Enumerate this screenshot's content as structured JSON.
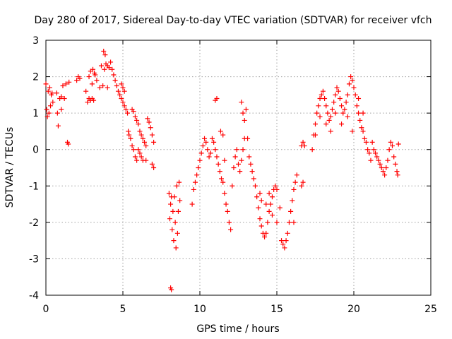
{
  "chart_data": {
    "type": "scatter",
    "title": "Day 280 of 2017, Sidereal Day-to-day VTEC variation (SDTVAR) for receiver vfch",
    "xlabel": "GPS time / hours",
    "ylabel": "SDTVAR / TECUs",
    "xlim": [
      0,
      25
    ],
    "ylim": [
      -4,
      3
    ],
    "xticks": [
      0,
      5,
      10,
      15,
      20,
      25
    ],
    "yticks": [
      -4,
      -3,
      -2,
      -1,
      0,
      1,
      2,
      3
    ],
    "grid": true,
    "marker": "+",
    "color": "#ff0000",
    "series": [
      {
        "name": "SDTVAR",
        "points": [
          [
            0.0,
            1.8
          ],
          [
            0.05,
            1.1
          ],
          [
            0.1,
            0.9
          ],
          [
            0.15,
            1.6
          ],
          [
            0.2,
            1.0
          ],
          [
            0.25,
            1.7
          ],
          [
            0.3,
            1.2
          ],
          [
            0.35,
            1.5
          ],
          [
            0.4,
            1.55
          ],
          [
            0.45,
            1.3
          ],
          [
            0.7,
            1.55
          ],
          [
            0.75,
            1.0
          ],
          [
            0.8,
            0.65
          ],
          [
            0.9,
            1.4
          ],
          [
            1.0,
            1.1
          ],
          [
            1.0,
            1.45
          ],
          [
            1.1,
            1.75
          ],
          [
            1.2,
            1.4
          ],
          [
            1.3,
            1.8
          ],
          [
            1.4,
            0.2
          ],
          [
            1.45,
            0.15
          ],
          [
            1.5,
            1.85
          ],
          [
            2.0,
            1.9
          ],
          [
            2.1,
            2.0
          ],
          [
            2.2,
            1.95
          ],
          [
            2.6,
            1.6
          ],
          [
            2.7,
            1.3
          ],
          [
            2.8,
            1.4
          ],
          [
            2.8,
            2.0
          ],
          [
            2.9,
            1.35
          ],
          [
            2.9,
            2.15
          ],
          [
            3.0,
            1.4
          ],
          [
            3.0,
            1.8
          ],
          [
            3.05,
            2.2
          ],
          [
            3.1,
            1.35
          ],
          [
            3.15,
            2.1
          ],
          [
            3.2,
            2.05
          ],
          [
            3.3,
            1.9
          ],
          [
            3.5,
            1.7
          ],
          [
            3.6,
            2.3
          ],
          [
            3.7,
            1.75
          ],
          [
            3.75,
            2.7
          ],
          [
            3.8,
            2.2
          ],
          [
            3.85,
            2.6
          ],
          [
            3.9,
            2.35
          ],
          [
            4.0,
            1.7
          ],
          [
            4.0,
            2.3
          ],
          [
            4.1,
            2.25
          ],
          [
            4.2,
            2.4
          ],
          [
            4.3,
            2.2
          ],
          [
            4.4,
            2.05
          ],
          [
            4.5,
            1.9
          ],
          [
            4.6,
            1.75
          ],
          [
            4.7,
            1.6
          ],
          [
            4.8,
            1.5
          ],
          [
            4.9,
            1.4
          ],
          [
            5.0,
            1.3
          ],
          [
            5.1,
            1.2
          ],
          [
            5.2,
            1.1
          ],
          [
            5.3,
            1.0
          ],
          [
            4.9,
            1.8
          ],
          [
            5.0,
            1.7
          ],
          [
            5.1,
            1.6
          ],
          [
            5.35,
            0.5
          ],
          [
            5.4,
            0.4
          ],
          [
            5.5,
            0.3
          ],
          [
            5.6,
            0.1
          ],
          [
            5.7,
            0.0
          ],
          [
            5.8,
            -0.2
          ],
          [
            5.9,
            -0.3
          ],
          [
            5.6,
            1.1
          ],
          [
            5.7,
            1.05
          ],
          [
            5.8,
            0.9
          ],
          [
            5.9,
            0.8
          ],
          [
            6.0,
            0.7
          ],
          [
            6.1,
            0.5
          ],
          [
            6.2,
            0.4
          ],
          [
            6.3,
            0.3
          ],
          [
            6.4,
            0.2
          ],
          [
            6.5,
            0.1
          ],
          [
            6.0,
            0.0
          ],
          [
            6.1,
            -0.1
          ],
          [
            6.2,
            -0.2
          ],
          [
            6.3,
            -0.3
          ],
          [
            6.5,
            -0.3
          ],
          [
            6.6,
            0.85
          ],
          [
            6.7,
            0.75
          ],
          [
            6.8,
            0.6
          ],
          [
            6.9,
            0.4
          ],
          [
            6.9,
            -0.4
          ],
          [
            7.0,
            -0.5
          ],
          [
            7.0,
            0.2
          ],
          [
            8.0,
            -1.2
          ],
          [
            8.05,
            -1.9
          ],
          [
            8.1,
            -1.5
          ],
          [
            8.1,
            -3.8
          ],
          [
            8.15,
            -1.3
          ],
          [
            8.15,
            -3.85
          ],
          [
            8.2,
            -2.2
          ],
          [
            8.25,
            -1.7
          ],
          [
            8.3,
            -2.5
          ],
          [
            8.35,
            -1.3
          ],
          [
            8.4,
            -2.0
          ],
          [
            8.45,
            -2.7
          ],
          [
            8.5,
            -1.0
          ],
          [
            8.55,
            -2.3
          ],
          [
            8.6,
            -1.7
          ],
          [
            8.65,
            -0.9
          ],
          [
            8.7,
            -1.4
          ],
          [
            9.5,
            -1.5
          ],
          [
            9.6,
            -1.1
          ],
          [
            9.7,
            -0.9
          ],
          [
            9.8,
            -0.7
          ],
          [
            9.9,
            -0.5
          ],
          [
            10.0,
            -0.3
          ],
          [
            10.1,
            -0.1
          ],
          [
            10.2,
            0.1
          ],
          [
            10.3,
            0.3
          ],
          [
            10.4,
            0.2
          ],
          [
            10.5,
            0.0
          ],
          [
            10.6,
            -0.2
          ],
          [
            10.7,
            -0.1
          ],
          [
            10.8,
            0.3
          ],
          [
            10.9,
            0.2
          ],
          [
            11.0,
            1.35
          ],
          [
            11.1,
            1.4
          ],
          [
            11.0,
            0.0
          ],
          [
            11.1,
            -0.2
          ],
          [
            11.2,
            -0.4
          ],
          [
            11.3,
            -0.6
          ],
          [
            11.35,
            0.5
          ],
          [
            11.4,
            -0.8
          ],
          [
            11.5,
            -0.9
          ],
          [
            11.6,
            -1.2
          ],
          [
            11.7,
            -1.5
          ],
          [
            11.8,
            -1.7
          ],
          [
            11.9,
            -2.0
          ],
          [
            12.0,
            -2.2
          ],
          [
            12.1,
            -1.0
          ],
          [
            12.2,
            -0.5
          ],
          [
            12.3,
            -0.2
          ],
          [
            12.4,
            0.0
          ],
          [
            11.5,
            0.4
          ],
          [
            11.6,
            -0.3
          ],
          [
            12.5,
            -0.4
          ],
          [
            12.6,
            -0.6
          ],
          [
            12.7,
            -0.3
          ],
          [
            12.8,
            0.0
          ],
          [
            12.9,
            0.3
          ],
          [
            12.7,
            1.3
          ],
          [
            12.8,
            1.0
          ],
          [
            12.9,
            0.8
          ],
          [
            13.0,
            1.1
          ],
          [
            13.1,
            0.3
          ],
          [
            13.2,
            -0.2
          ],
          [
            13.3,
            -0.4
          ],
          [
            13.4,
            -0.6
          ],
          [
            13.5,
            -0.8
          ],
          [
            13.6,
            -1.0
          ],
          [
            13.7,
            -1.3
          ],
          [
            13.8,
            -1.6
          ],
          [
            13.9,
            -1.9
          ],
          [
            14.0,
            -2.1
          ],
          [
            14.1,
            -2.3
          ],
          [
            14.2,
            -2.4
          ],
          [
            14.3,
            -2.3
          ],
          [
            14.4,
            -2.0
          ],
          [
            14.5,
            -1.7
          ],
          [
            14.6,
            -1.5
          ],
          [
            14.7,
            -1.3
          ],
          [
            14.8,
            -1.1
          ],
          [
            14.9,
            -1.0
          ],
          [
            15.0,
            -1.1
          ],
          [
            13.9,
            -1.2
          ],
          [
            14.0,
            -1.4
          ],
          [
            14.3,
            -1.5
          ],
          [
            14.5,
            -1.2
          ],
          [
            14.7,
            -1.8
          ],
          [
            15.0,
            -2.0
          ],
          [
            15.2,
            -1.6
          ],
          [
            15.3,
            -2.5
          ],
          [
            15.4,
            -2.6
          ],
          [
            15.5,
            -2.7
          ],
          [
            15.6,
            -2.5
          ],
          [
            15.7,
            -2.3
          ],
          [
            15.8,
            -2.0
          ],
          [
            15.9,
            -1.7
          ],
          [
            16.0,
            -1.4
          ],
          [
            16.1,
            -1.1
          ],
          [
            16.2,
            -0.9
          ],
          [
            16.3,
            -0.7
          ],
          [
            16.1,
            -2.0
          ],
          [
            16.6,
            -1.0
          ],
          [
            16.7,
            -0.9
          ],
          [
            16.6,
            0.1
          ],
          [
            16.7,
            0.2
          ],
          [
            16.8,
            0.1
          ],
          [
            17.3,
            0.0
          ],
          [
            17.4,
            0.4
          ],
          [
            17.5,
            0.7
          ],
          [
            17.6,
            1.0
          ],
          [
            17.7,
            1.2
          ],
          [
            17.8,
            1.4
          ],
          [
            17.9,
            1.5
          ],
          [
            18.0,
            1.6
          ],
          [
            18.1,
            1.4
          ],
          [
            18.2,
            1.2
          ],
          [
            18.3,
            1.0
          ],
          [
            18.4,
            0.8
          ],
          [
            18.5,
            0.9
          ],
          [
            18.6,
            1.1
          ],
          [
            18.7,
            1.3
          ],
          [
            18.8,
            1.5
          ],
          [
            18.9,
            1.7
          ],
          [
            19.0,
            1.6
          ],
          [
            19.1,
            1.4
          ],
          [
            19.2,
            1.2
          ],
          [
            19.3,
            1.0
          ],
          [
            19.4,
            1.1
          ],
          [
            19.5,
            1.3
          ],
          [
            19.6,
            1.5
          ],
          [
            19.7,
            1.8
          ],
          [
            19.8,
            2.0
          ],
          [
            19.9,
            1.9
          ],
          [
            20.0,
            1.7
          ],
          [
            20.1,
            1.5
          ],
          [
            20.2,
            1.2
          ],
          [
            20.3,
            1.0
          ],
          [
            20.4,
            0.8
          ],
          [
            20.5,
            0.6
          ],
          [
            20.6,
            0.5
          ],
          [
            20.7,
            0.3
          ],
          [
            20.8,
            0.2
          ],
          [
            20.9,
            0.0
          ],
          [
            21.0,
            -0.1
          ],
          [
            21.1,
            -0.3
          ],
          [
            17.5,
            0.4
          ],
          [
            17.8,
            0.9
          ],
          [
            18.2,
            0.7
          ],
          [
            18.5,
            0.5
          ],
          [
            18.8,
            1.0
          ],
          [
            19.2,
            0.7
          ],
          [
            19.6,
            0.9
          ],
          [
            19.9,
            0.5
          ],
          [
            20.3,
            1.4
          ],
          [
            20.6,
            1.0
          ],
          [
            21.2,
            0.2
          ],
          [
            21.3,
            0.0
          ],
          [
            21.4,
            -0.1
          ],
          [
            21.5,
            -0.2
          ],
          [
            21.6,
            -0.3
          ],
          [
            21.7,
            -0.4
          ],
          [
            21.8,
            -0.5
          ],
          [
            21.9,
            -0.6
          ],
          [
            22.0,
            -0.7
          ],
          [
            22.1,
            -0.5
          ],
          [
            22.2,
            -0.3
          ],
          [
            22.3,
            0.0
          ],
          [
            22.4,
            0.2
          ],
          [
            22.5,
            0.1
          ],
          [
            22.6,
            -0.2
          ],
          [
            22.7,
            -0.4
          ],
          [
            22.8,
            -0.6
          ],
          [
            22.85,
            -0.7
          ],
          [
            22.9,
            0.15
          ]
        ]
      }
    ]
  }
}
